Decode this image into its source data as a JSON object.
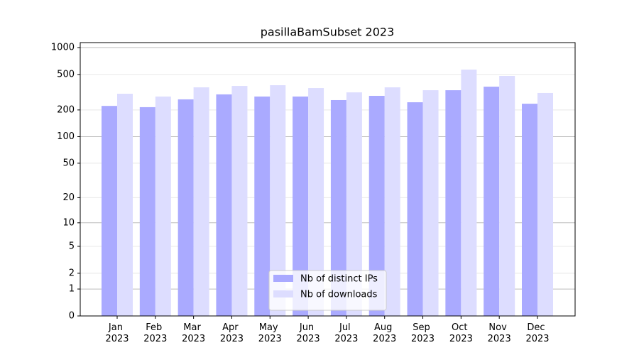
{
  "chart_data": {
    "type": "bar",
    "title": "pasillaBamSubset 2023",
    "categories": [
      "Jan 2023",
      "Feb 2023",
      "Mar 2023",
      "Apr 2023",
      "May 2023",
      "Jun 2023",
      "Jul 2023",
      "Aug 2023",
      "Sep 2023",
      "Oct 2023",
      "Nov 2023",
      "Dec 2023"
    ],
    "series": [
      {
        "name": "Nb of distinct IPs",
        "color": "#aaaaff",
        "values": [
          222,
          215,
          263,
          299,
          283,
          283,
          258,
          288,
          244,
          333,
          365,
          235
        ]
      },
      {
        "name": "Nb of downloads",
        "color": "#ddddff",
        "values": [
          304,
          283,
          359,
          372,
          379,
          352,
          315,
          359,
          333,
          567,
          481,
          310
        ]
      }
    ],
    "y_scale": "log1p",
    "ylim": [
      0,
      1137
    ],
    "yticks": [
      0,
      1,
      2,
      5,
      10,
      20,
      50,
      100,
      200,
      500,
      1000
    ],
    "grid": true,
    "legend": "lower center"
  }
}
